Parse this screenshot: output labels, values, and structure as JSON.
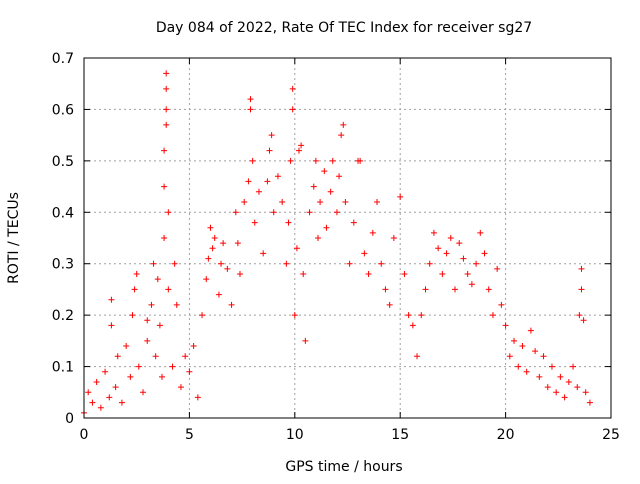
{
  "chart_data": {
    "type": "scatter",
    "title": "Day 084 of 2022, Rate Of TEC Index for receiver sg27",
    "xlabel": "GPS time / hours",
    "ylabel": "ROTI / TECUs",
    "xlim": [
      0,
      25
    ],
    "ylim": [
      0,
      0.7
    ],
    "xticks": [
      0,
      5,
      10,
      15,
      20,
      25
    ],
    "yticks": [
      0,
      0.1,
      0.2,
      0.3,
      0.4,
      0.5,
      0.6,
      0.7
    ],
    "xtick_labels": [
      "0",
      "5",
      "10",
      "15",
      "20",
      "25"
    ],
    "ytick_labels": [
      "0",
      "0.1",
      "0.2",
      "0.3",
      "0.4",
      "0.5",
      "0.6",
      "0.7"
    ],
    "grid": true,
    "marker": "plus",
    "color": "#ff0000",
    "series": [
      {
        "points": [
          [
            0.0,
            0.01
          ],
          [
            0.2,
            0.05
          ],
          [
            0.4,
            0.03
          ],
          [
            0.6,
            0.07
          ],
          [
            0.8,
            0.02
          ],
          [
            1.0,
            0.09
          ],
          [
            1.2,
            0.04
          ],
          [
            1.3,
            0.18
          ],
          [
            1.3,
            0.23
          ],
          [
            1.5,
            0.06
          ],
          [
            1.6,
            0.12
          ],
          [
            1.8,
            0.03
          ],
          [
            2.0,
            0.14
          ],
          [
            2.2,
            0.08
          ],
          [
            2.3,
            0.2
          ],
          [
            2.4,
            0.25
          ],
          [
            2.5,
            0.28
          ],
          [
            2.6,
            0.1
          ],
          [
            2.8,
            0.05
          ],
          [
            3.0,
            0.15
          ],
          [
            3.0,
            0.19
          ],
          [
            3.2,
            0.22
          ],
          [
            3.3,
            0.3
          ],
          [
            3.4,
            0.12
          ],
          [
            3.5,
            0.27
          ],
          [
            3.6,
            0.18
          ],
          [
            3.7,
            0.08
          ],
          [
            3.8,
            0.35
          ],
          [
            3.8,
            0.45
          ],
          [
            3.8,
            0.52
          ],
          [
            3.9,
            0.57
          ],
          [
            3.9,
            0.6
          ],
          [
            3.9,
            0.64
          ],
          [
            3.9,
            0.67
          ],
          [
            4.0,
            0.4
          ],
          [
            4.0,
            0.25
          ],
          [
            4.2,
            0.1
          ],
          [
            4.3,
            0.3
          ],
          [
            4.4,
            0.22
          ],
          [
            4.6,
            0.06
          ],
          [
            4.8,
            0.12
          ],
          [
            5.0,
            0.09
          ],
          [
            5.2,
            0.14
          ],
          [
            5.4,
            0.04
          ],
          [
            5.6,
            0.2
          ],
          [
            5.8,
            0.27
          ],
          [
            5.9,
            0.31
          ],
          [
            6.0,
            0.37
          ],
          [
            6.1,
            0.33
          ],
          [
            6.2,
            0.35
          ],
          [
            6.4,
            0.24
          ],
          [
            6.5,
            0.3
          ],
          [
            6.6,
            0.34
          ],
          [
            6.8,
            0.29
          ],
          [
            7.0,
            0.22
          ],
          [
            7.2,
            0.4
          ],
          [
            7.3,
            0.34
          ],
          [
            7.4,
            0.28
          ],
          [
            7.6,
            0.42
          ],
          [
            7.8,
            0.46
          ],
          [
            7.9,
            0.6
          ],
          [
            7.9,
            0.62
          ],
          [
            8.0,
            0.5
          ],
          [
            8.1,
            0.38
          ],
          [
            8.3,
            0.44
          ],
          [
            8.5,
            0.32
          ],
          [
            8.7,
            0.46
          ],
          [
            8.8,
            0.52
          ],
          [
            8.9,
            0.55
          ],
          [
            9.0,
            0.4
          ],
          [
            9.2,
            0.47
          ],
          [
            9.4,
            0.42
          ],
          [
            9.6,
            0.3
          ],
          [
            9.7,
            0.38
          ],
          [
            9.8,
            0.5
          ],
          [
            9.9,
            0.6
          ],
          [
            9.9,
            0.64
          ],
          [
            10.0,
            0.2
          ],
          [
            10.1,
            0.33
          ],
          [
            10.2,
            0.52
          ],
          [
            10.3,
            0.53
          ],
          [
            10.4,
            0.28
          ],
          [
            10.5,
            0.15
          ],
          [
            10.7,
            0.4
          ],
          [
            10.9,
            0.45
          ],
          [
            11.0,
            0.5
          ],
          [
            11.1,
            0.35
          ],
          [
            11.2,
            0.42
          ],
          [
            11.4,
            0.48
          ],
          [
            11.5,
            0.37
          ],
          [
            11.7,
            0.44
          ],
          [
            11.8,
            0.5
          ],
          [
            12.0,
            0.4
          ],
          [
            12.1,
            0.47
          ],
          [
            12.2,
            0.55
          ],
          [
            12.3,
            0.57
          ],
          [
            12.4,
            0.42
          ],
          [
            12.6,
            0.3
          ],
          [
            12.8,
            0.38
          ],
          [
            13.0,
            0.5
          ],
          [
            13.1,
            0.5
          ],
          [
            13.3,
            0.32
          ],
          [
            13.5,
            0.28
          ],
          [
            13.7,
            0.36
          ],
          [
            13.9,
            0.42
          ],
          [
            14.1,
            0.3
          ],
          [
            14.3,
            0.25
          ],
          [
            14.5,
            0.22
          ],
          [
            14.7,
            0.35
          ],
          [
            15.0,
            0.43
          ],
          [
            15.2,
            0.28
          ],
          [
            15.4,
            0.2
          ],
          [
            15.6,
            0.18
          ],
          [
            15.8,
            0.12
          ],
          [
            16.0,
            0.2
          ],
          [
            16.2,
            0.25
          ],
          [
            16.4,
            0.3
          ],
          [
            16.6,
            0.36
          ],
          [
            16.8,
            0.33
          ],
          [
            17.0,
            0.28
          ],
          [
            17.2,
            0.32
          ],
          [
            17.4,
            0.35
          ],
          [
            17.6,
            0.25
          ],
          [
            17.8,
            0.34
          ],
          [
            18.0,
            0.31
          ],
          [
            18.2,
            0.28
          ],
          [
            18.4,
            0.26
          ],
          [
            18.6,
            0.3
          ],
          [
            18.8,
            0.36
          ],
          [
            19.0,
            0.32
          ],
          [
            19.2,
            0.25
          ],
          [
            19.4,
            0.2
          ],
          [
            19.6,
            0.29
          ],
          [
            19.8,
            0.22
          ],
          [
            20.0,
            0.18
          ],
          [
            20.2,
            0.12
          ],
          [
            20.4,
            0.15
          ],
          [
            20.6,
            0.1
          ],
          [
            20.8,
            0.14
          ],
          [
            21.0,
            0.09
          ],
          [
            21.2,
            0.17
          ],
          [
            21.4,
            0.13
          ],
          [
            21.6,
            0.08
          ],
          [
            21.8,
            0.12
          ],
          [
            22.0,
            0.06
          ],
          [
            22.2,
            0.1
          ],
          [
            22.4,
            0.05
          ],
          [
            22.6,
            0.08
          ],
          [
            22.8,
            0.04
          ],
          [
            23.0,
            0.07
          ],
          [
            23.2,
            0.1
          ],
          [
            23.4,
            0.06
          ],
          [
            23.5,
            0.2
          ],
          [
            23.6,
            0.29
          ],
          [
            23.6,
            0.25
          ],
          [
            23.7,
            0.19
          ],
          [
            23.8,
            0.05
          ],
          [
            24.0,
            0.03
          ]
        ]
      }
    ]
  }
}
